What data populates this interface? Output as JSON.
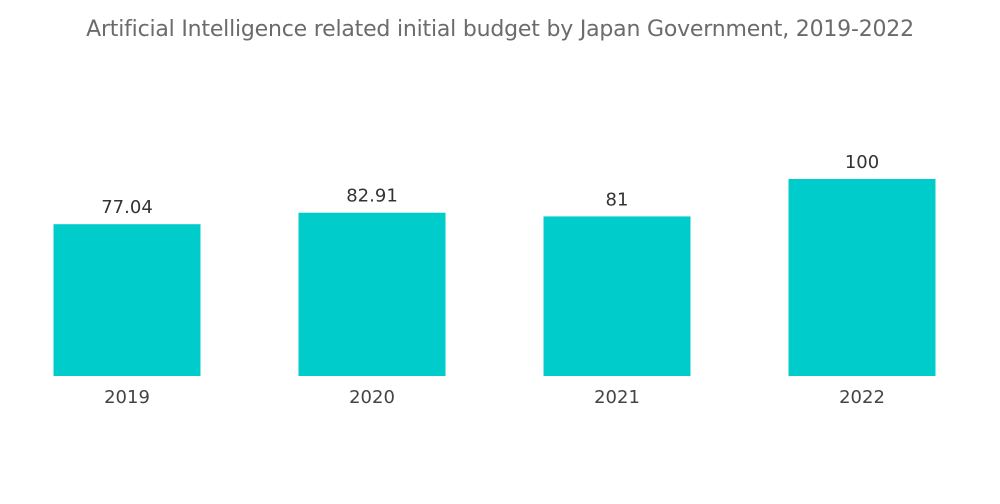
{
  "chart_data": {
    "type": "bar",
    "title": "Artificial Intelligence related initial  budget by Japan Government, 2019-2022",
    "categories": [
      "2019",
      "2020",
      "2021",
      "2022"
    ],
    "values": [
      77.04,
      82.91,
      81,
      100
    ],
    "data_labels": [
      "77.04",
      "82.91",
      "81",
      "100"
    ],
    "xlabel": "",
    "ylabel": "",
    "ylim": [
      0,
      100
    ],
    "grid": false,
    "legend": "none",
    "bar_color": "#00CCCC"
  }
}
